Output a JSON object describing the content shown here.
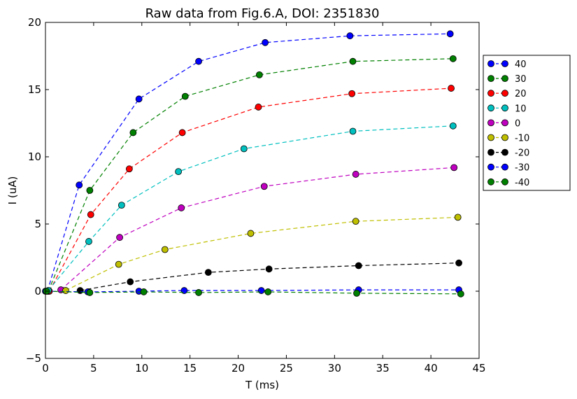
{
  "chart_data": {
    "type": "line",
    "title": "Raw data from Fig.6.A, DOI: 2351830",
    "xlabel": "T (ms)",
    "ylabel": "I (uA)",
    "xlim": [
      0,
      45
    ],
    "ylim": [
      -5,
      20
    ],
    "xticks": [
      0,
      5,
      10,
      15,
      20,
      25,
      30,
      35,
      40,
      45
    ],
    "yticks": [
      -5,
      0,
      5,
      10,
      15,
      20
    ],
    "grid": false,
    "legend_position": "outside-right",
    "line_style": "dashed with circle markers",
    "series": [
      {
        "name": "40",
        "color": "#0000ff",
        "x": [
          0.2,
          3.5,
          9.7,
          15.9,
          22.8,
          31.6,
          42.0
        ],
        "y": [
          0.0,
          7.9,
          14.3,
          17.1,
          18.5,
          19.0,
          19.15
        ]
      },
      {
        "name": "30",
        "color": "#008000",
        "x": [
          0.3,
          4.6,
          9.1,
          14.5,
          22.2,
          31.9,
          42.3
        ],
        "y": [
          0.0,
          7.5,
          11.8,
          14.5,
          16.1,
          17.1,
          17.3
        ]
      },
      {
        "name": "20",
        "color": "#ff0000",
        "x": [
          0.4,
          4.7,
          8.7,
          14.2,
          22.1,
          31.8,
          42.1
        ],
        "y": [
          0.0,
          5.7,
          9.1,
          11.8,
          13.7,
          14.7,
          15.1
        ]
      },
      {
        "name": "10",
        "color": "#00bfbf",
        "x": [
          0.3,
          4.5,
          7.9,
          13.8,
          20.6,
          31.9,
          42.3
        ],
        "y": [
          0.05,
          3.7,
          6.4,
          8.9,
          10.6,
          11.9,
          12.3
        ]
      },
      {
        "name": "0",
        "color": "#bf00bf",
        "x": [
          1.6,
          7.7,
          14.1,
          22.7,
          32.2,
          42.4
        ],
        "y": [
          0.1,
          4.0,
          6.2,
          7.8,
          8.7,
          9.2
        ]
      },
      {
        "name": "-10",
        "color": "#bfbf00",
        "x": [
          2.1,
          7.6,
          12.4,
          21.3,
          32.2,
          42.8
        ],
        "y": [
          0.05,
          2.0,
          3.1,
          4.3,
          5.2,
          5.5
        ]
      },
      {
        "name": "-20",
        "color": "#000000",
        "x": [
          3.6,
          8.8,
          16.9,
          23.2,
          32.5,
          42.9
        ],
        "y": [
          0.05,
          0.7,
          1.4,
          1.65,
          1.9,
          2.1
        ]
      },
      {
        "name": "-30",
        "color": "#0000ff",
        "x": [
          0.0,
          4.4,
          9.7,
          14.4,
          22.4,
          32.5,
          42.9
        ],
        "y": [
          0.0,
          -0.05,
          0.0,
          0.05,
          0.05,
          0.1,
          0.1
        ]
      },
      {
        "name": "-40",
        "color": "#008000",
        "x": [
          0.1,
          4.6,
          10.2,
          15.9,
          23.1,
          32.3,
          43.1
        ],
        "y": [
          0.0,
          -0.1,
          -0.05,
          -0.1,
          -0.05,
          -0.15,
          -0.2
        ]
      }
    ]
  }
}
